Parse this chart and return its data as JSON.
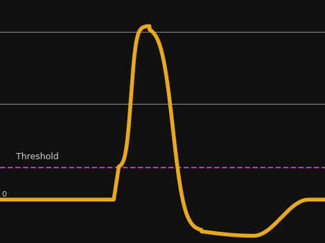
{
  "background_color": "#111111",
  "line_color": "#E8A820",
  "line_width": 4.0,
  "threshold_color": "#AA44AA",
  "threshold_linestyle": "--",
  "threshold_linewidth": 1.5,
  "hline_color": "#888888",
  "hline_linewidth": 0.8,
  "threshold_label": "Threshold",
  "threshold_label_color": "#CCCCCC",
  "threshold_label_fontsize": 9,
  "resting_label": "0",
  "resting_label_color": "#CCCCCC",
  "resting_label_fontsize": 8,
  "xlim": [
    0,
    100
  ],
  "ylim": [
    -38,
    130
  ],
  "hline1_y": 108,
  "hline2_y": 58,
  "threshold_y": 14,
  "resting_y": -8,
  "peak_y": 112,
  "hyper_trough_y": -30,
  "t_stim": 35,
  "t_rise_start": 36.5,
  "t_peak": 46,
  "t_fall_cross_threshold": 57,
  "t_fall_end": 62,
  "t_hyper_peak": 78,
  "t_return": 95
}
